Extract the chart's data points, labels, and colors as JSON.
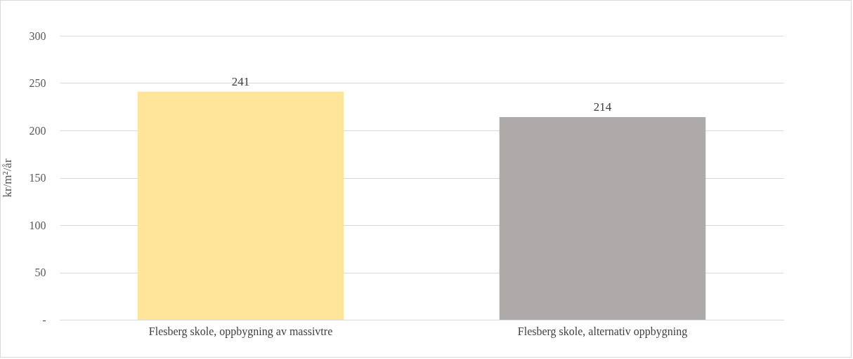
{
  "chart_data": {
    "type": "bar",
    "ylabel": "kr/m²/år",
    "categories": [
      "Flesberg skole, oppbygning av massivtre",
      "Flesberg skole, alternativ oppbygning"
    ],
    "values": [
      241,
      214
    ],
    "colors": [
      "#fee599",
      "#aeaaaa"
    ],
    "ylim": [
      0,
      300
    ],
    "yticks": [
      {
        "value": 0,
        "label": "-"
      },
      50,
      100,
      150,
      200,
      250,
      300
    ],
    "grid": "y",
    "data_labels": true,
    "legend": false
  }
}
